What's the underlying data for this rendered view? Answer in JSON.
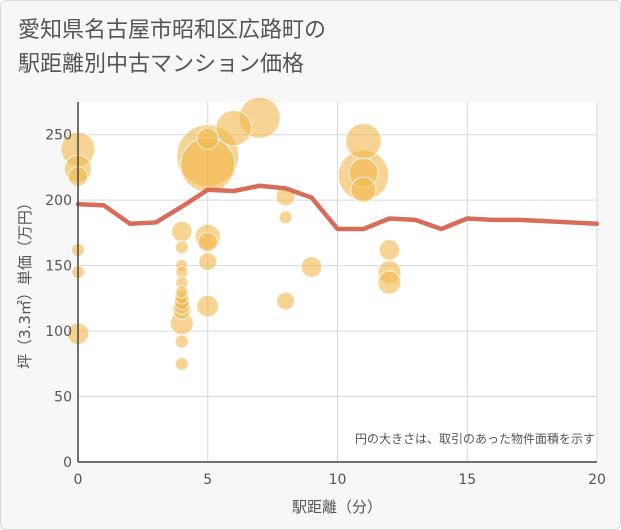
{
  "title_line1": "愛知県名古屋市昭和区広路町の",
  "title_line2": "駅距離別中古マンション価格",
  "chart_data": {
    "type": "scatter",
    "xlabel": "駅距離（分）",
    "ylabel": "坪（3.3㎡）単価（万円）",
    "xlim": [
      0,
      20
    ],
    "ylim": [
      0,
      275
    ],
    "x_ticks": [
      0,
      5,
      10,
      15,
      20
    ],
    "y_ticks": [
      0,
      50,
      100,
      150,
      200,
      250
    ],
    "grid": true,
    "note": "円の大きさは、取引のあった物件面積を示す",
    "colors": {
      "bubble": "#f2b84b",
      "line": "#d96b5a",
      "grid": "#cfd9e3",
      "axis": "#444444"
    },
    "bubbles": [
      {
        "x": 0,
        "y": 239,
        "size": 55
      },
      {
        "x": 0,
        "y": 224,
        "size": 35
      },
      {
        "x": 0,
        "y": 218,
        "size": 18
      },
      {
        "x": 0,
        "y": 162,
        "size": 8
      },
      {
        "x": 0,
        "y": 145,
        "size": 8
      },
      {
        "x": 0,
        "y": 98,
        "size": 22
      },
      {
        "x": 4,
        "y": 176,
        "size": 20
      },
      {
        "x": 4,
        "y": 164,
        "size": 8
      },
      {
        "x": 4,
        "y": 150,
        "size": 7
      },
      {
        "x": 4,
        "y": 145,
        "size": 7
      },
      {
        "x": 4,
        "y": 137,
        "size": 7
      },
      {
        "x": 4,
        "y": 130,
        "size": 7
      },
      {
        "x": 4,
        "y": 126,
        "size": 9
      },
      {
        "x": 4,
        "y": 122,
        "size": 10
      },
      {
        "x": 4,
        "y": 119,
        "size": 12
      },
      {
        "x": 4,
        "y": 116,
        "size": 16
      },
      {
        "x": 4,
        "y": 106,
        "size": 25
      },
      {
        "x": 4,
        "y": 92,
        "size": 8
      },
      {
        "x": 4,
        "y": 75,
        "size": 8
      },
      {
        "x": 5,
        "y": 234,
        "size": 180
      },
      {
        "x": 5,
        "y": 227,
        "size": 140
      },
      {
        "x": 5,
        "y": 247,
        "size": 22
      },
      {
        "x": 5,
        "y": 172,
        "size": 30
      },
      {
        "x": 5,
        "y": 168,
        "size": 18
      },
      {
        "x": 5,
        "y": 153,
        "size": 15
      },
      {
        "x": 5,
        "y": 119,
        "size": 22
      },
      {
        "x": 6,
        "y": 255,
        "size": 60
      },
      {
        "x": 7,
        "y": 263,
        "size": 80
      },
      {
        "x": 8,
        "y": 203,
        "size": 17
      },
      {
        "x": 8,
        "y": 187,
        "size": 8
      },
      {
        "x": 8,
        "y": 123,
        "size": 15
      },
      {
        "x": 9,
        "y": 149,
        "size": 20
      },
      {
        "x": 11,
        "y": 245,
        "size": 60
      },
      {
        "x": 11,
        "y": 219,
        "size": 120
      },
      {
        "x": 11,
        "y": 221,
        "size": 40
      },
      {
        "x": 11,
        "y": 208,
        "size": 30
      },
      {
        "x": 12,
        "y": 162,
        "size": 20
      },
      {
        "x": 12,
        "y": 145,
        "size": 25
      },
      {
        "x": 12,
        "y": 137,
        "size": 25
      }
    ],
    "line": {
      "x": [
        0,
        1,
        2,
        3,
        4,
        5,
        6,
        7,
        8,
        9,
        10,
        11,
        12,
        13,
        14,
        15,
        16,
        17,
        18,
        19,
        20
      ],
      "y": [
        197,
        196,
        182,
        183,
        195,
        208,
        207,
        211,
        209,
        202,
        178,
        178,
        186,
        185,
        178,
        186,
        185,
        185,
        184,
        183,
        182
      ]
    }
  }
}
